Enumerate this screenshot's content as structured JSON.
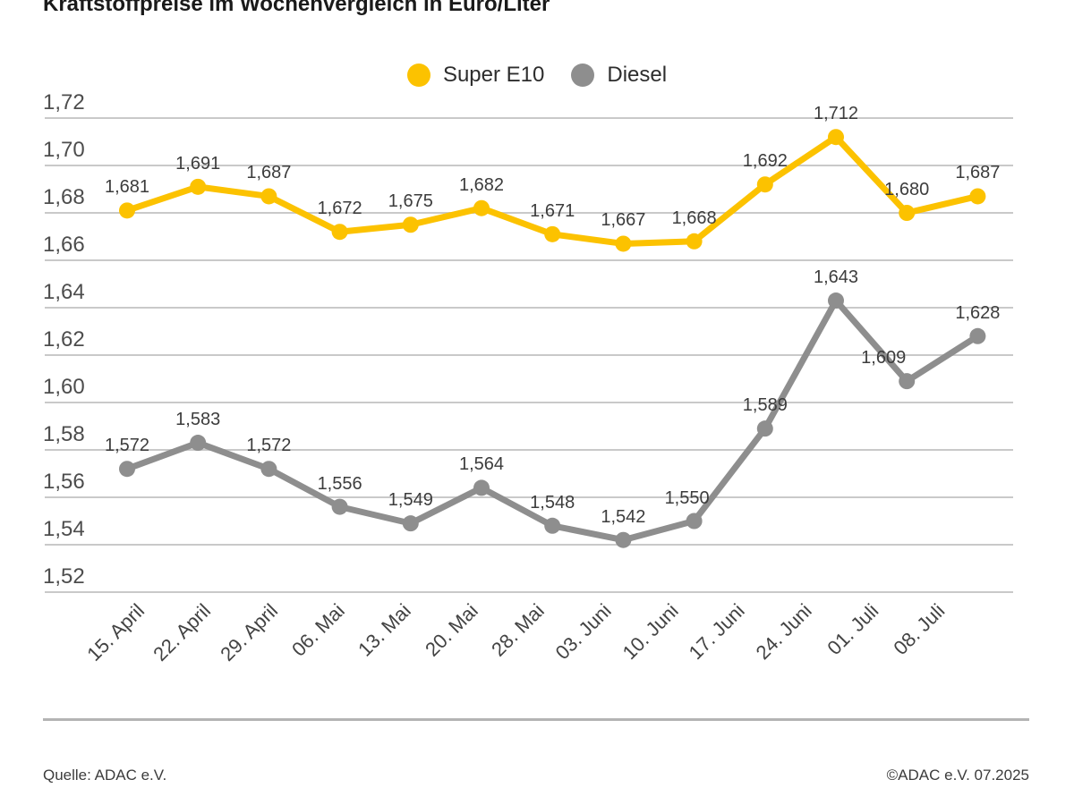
{
  "header": {
    "title": "Kraftstoffpreise im Wochenvergleich in Euro/Liter"
  },
  "chart_data": {
    "type": "line",
    "title": "Kraftstoffpreise im Wochenvergleich in Euro/Liter",
    "unit": "Euro/Liter",
    "grid": true,
    "legend_position": "top-center",
    "categories": [
      "15. April",
      "22. April",
      "29. April",
      "06. Mai",
      "13. Mai",
      "20. Mai",
      "28. Mai",
      "03. Juni",
      "10. Juni",
      "17. Juni",
      "24. Juni",
      "01. Juli",
      "08. Juli"
    ],
    "series": [
      {
        "name": "Super E10",
        "color": "#FCC200",
        "values": [
          1.681,
          1.691,
          1.687,
          1.672,
          1.675,
          1.682,
          1.671,
          1.667,
          1.668,
          1.692,
          1.712,
          1.68,
          1.687
        ],
        "labels": [
          "1,681",
          "1,691",
          "1,687",
          "1,672",
          "1,675",
          "1,682",
          "1,671",
          "1,667",
          "1,668",
          "1,692",
          "1,712",
          "1,680",
          "1,687"
        ]
      },
      {
        "name": "Diesel",
        "color": "#8E8E8E",
        "values": [
          1.572,
          1.583,
          1.572,
          1.556,
          1.549,
          1.564,
          1.548,
          1.542,
          1.55,
          1.589,
          1.643,
          1.609,
          1.628
        ],
        "labels": [
          "1,572",
          "1,583",
          "1,572",
          "1,556",
          "1,549",
          "1,564",
          "1,548",
          "1,542",
          "1,550",
          "1,589",
          "1,643",
          "1,609",
          "1,628"
        ]
      }
    ],
    "y_axis": {
      "min": 1.52,
      "max": 1.72,
      "tick_values": [
        1.72,
        1.7,
        1.68,
        1.66,
        1.64,
        1.62,
        1.6,
        1.58,
        1.56,
        1.54,
        1.52
      ],
      "tick_labels": [
        "1,72",
        "1,70",
        "1,68",
        "1,66",
        "1,64",
        "1,62",
        "1,60",
        "1,58",
        "1,56",
        "1,54",
        "1,52"
      ]
    },
    "label_offsets": {
      "Diesel": {
        "8": [
          -8,
          0
        ],
        "11": [
          -26,
          0
        ]
      }
    },
    "grid_color": "#c9c9c9"
  },
  "footer": {
    "source": "Quelle: ADAC e.V.",
    "copyright": "©ADAC e.V. 07.2025"
  }
}
